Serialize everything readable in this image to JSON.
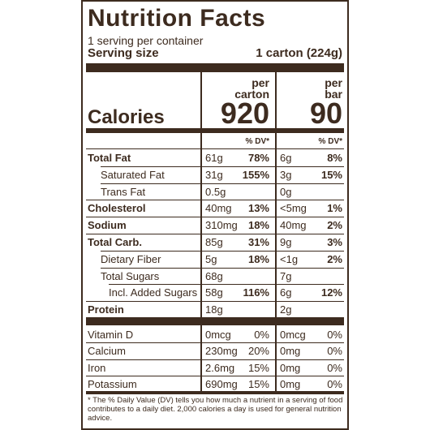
{
  "title": "Nutrition Facts",
  "servings_per_container": "1 serving per container",
  "serving_size_label": "Serving size",
  "serving_size_value": "1 carton (224g)",
  "columns": [
    {
      "header_line1": "per",
      "header_line2": "carton",
      "calories": "920",
      "dv_label": "% DV*"
    },
    {
      "header_line1": "per",
      "header_line2": "bar",
      "calories": "90",
      "dv_label": "% DV*"
    }
  ],
  "calories_label": "Calories",
  "nutrients": [
    {
      "label": "Total Fat",
      "c_amt": "61g",
      "c_dv": "78%",
      "b_amt": "6g",
      "b_dv": "8%"
    },
    {
      "label": "Saturated Fat",
      "c_amt": "31g",
      "c_dv": "155%",
      "b_amt": "3g",
      "b_dv": "15%"
    },
    {
      "label": "Trans Fat",
      "c_amt": "0.5g",
      "c_dv": "",
      "b_amt": "0g",
      "b_dv": ""
    },
    {
      "label": "Cholesterol",
      "c_amt": "40mg",
      "c_dv": "13%",
      "b_amt": "<5mg",
      "b_dv": "1%"
    },
    {
      "label": "Sodium",
      "c_amt": "310mg",
      "c_dv": "18%",
      "b_amt": "40mg",
      "b_dv": "2%"
    },
    {
      "label": "Total Carb.",
      "c_amt": "85g",
      "c_dv": "31%",
      "b_amt": "9g",
      "b_dv": "3%"
    },
    {
      "label": "Dietary Fiber",
      "c_amt": "5g",
      "c_dv": "18%",
      "b_amt": "<1g",
      "b_dv": "2%"
    },
    {
      "label": "Total Sugars",
      "c_amt": "68g",
      "c_dv": "",
      "b_amt": "7g",
      "b_dv": ""
    },
    {
      "label": "Incl. Added Sugars",
      "c_amt": "58g",
      "c_dv": "116%",
      "b_amt": "6g",
      "b_dv": "12%"
    },
    {
      "label": "Protein",
      "c_amt": "18g",
      "c_dv": "",
      "b_amt": "2g",
      "b_dv": ""
    }
  ],
  "vitamins": [
    {
      "label": "Vitamin D",
      "c_amt": "0mcg",
      "c_dv": "0%",
      "b_amt": "0mcg",
      "b_dv": "0%"
    },
    {
      "label": "Calcium",
      "c_amt": "230mg",
      "c_dv": "20%",
      "b_amt": "0mg",
      "b_dv": "0%"
    },
    {
      "label": "Iron",
      "c_amt": "2.6mg",
      "c_dv": "15%",
      "b_amt": "0mg",
      "b_dv": "0%"
    },
    {
      "label": "Potassium",
      "c_amt": "690mg",
      "c_dv": "15%",
      "b_amt": "0mg",
      "b_dv": "0%"
    }
  ],
  "footnote": "* The % Daily Value (DV) tells you how much a nutrient in a serving of food contributes to a daily diet. 2,000 calories a day is used for general nutrition advice.",
  "colors": {
    "ink": "#3d2b1f",
    "background": "#ffffff"
  }
}
